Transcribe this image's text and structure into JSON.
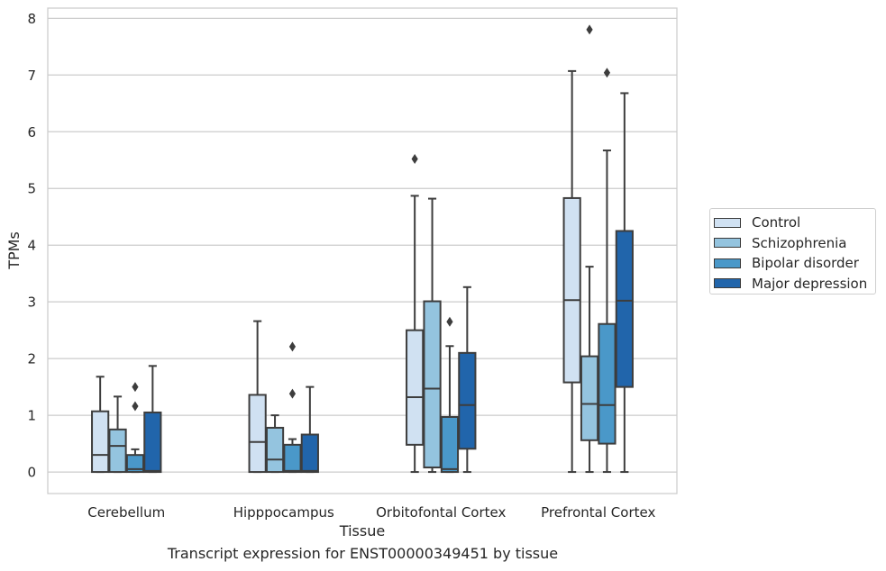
{
  "chart_data": {
    "type": "box",
    "xlabel": "Tissue",
    "ylabel": "TPMs",
    "ylim": [
      -0.38,
      8.18
    ],
    "yticks": [
      0,
      1,
      2,
      3,
      4,
      5,
      6,
      7,
      8
    ],
    "grid": true,
    "legend_position": "right",
    "categories": [
      "Cerebellum",
      "Hipppocampus",
      "Orbitofontal Cortex",
      "Prefrontal Cortex"
    ],
    "series": [
      {
        "name": "Control",
        "color": "#d0e1f2",
        "boxes": [
          {
            "whislo": 0,
            "q1": 0,
            "med": 0.3,
            "q3": 1.07,
            "whishi": 1.68,
            "fliers": []
          },
          {
            "whislo": 0,
            "q1": 0,
            "med": 0.53,
            "q3": 1.36,
            "whishi": 2.66,
            "fliers": []
          },
          {
            "whislo": 0,
            "q1": 0.48,
            "med": 1.32,
            "q3": 2.5,
            "whishi": 4.87,
            "fliers": [
              5.52
            ]
          },
          {
            "whislo": 0,
            "q1": 1.58,
            "med": 3.03,
            "q3": 4.83,
            "whishi": 7.07,
            "fliers": []
          }
        ]
      },
      {
        "name": "Schizophrenia",
        "color": "#94c4df",
        "boxes": [
          {
            "whislo": 0,
            "q1": 0,
            "med": 0.46,
            "q3": 0.75,
            "whishi": 1.33,
            "fliers": []
          },
          {
            "whislo": 0,
            "q1": 0,
            "med": 0.22,
            "q3": 0.78,
            "whishi": 1.0,
            "fliers": []
          },
          {
            "whislo": 0,
            "q1": 0.08,
            "med": 1.47,
            "q3": 3.01,
            "whishi": 4.82,
            "fliers": []
          },
          {
            "whislo": 0,
            "q1": 0.56,
            "med": 1.2,
            "q3": 2.04,
            "whishi": 3.62,
            "fliers": [
              7.8
            ]
          }
        ]
      },
      {
        "name": "Bipolar disorder",
        "color": "#4a98c9",
        "boxes": [
          {
            "whislo": 0,
            "q1": 0,
            "med": 0.05,
            "q3": 0.3,
            "whishi": 0.4,
            "fliers": [
              1.16,
              1.5
            ]
          },
          {
            "whislo": 0,
            "q1": 0,
            "med": 0.02,
            "q3": 0.48,
            "whishi": 0.58,
            "fliers": [
              1.38,
              2.21
            ]
          },
          {
            "whislo": 0,
            "q1": 0,
            "med": 0.05,
            "q3": 0.97,
            "whishi": 2.22,
            "fliers": [
              2.65
            ]
          },
          {
            "whislo": 0,
            "q1": 0.5,
            "med": 1.18,
            "q3": 2.61,
            "whishi": 5.67,
            "fliers": [
              7.04
            ]
          }
        ]
      },
      {
        "name": "Major depression",
        "color": "#2165ab",
        "boxes": [
          {
            "whislo": 0,
            "q1": 0,
            "med": 0.02,
            "q3": 1.05,
            "whishi": 1.87,
            "fliers": []
          },
          {
            "whislo": 0,
            "q1": 0,
            "med": 0.02,
            "q3": 0.66,
            "whishi": 1.5,
            "fliers": []
          },
          {
            "whislo": 0,
            "q1": 0.41,
            "med": 1.18,
            "q3": 2.1,
            "whishi": 3.26,
            "fliers": []
          },
          {
            "whislo": 0,
            "q1": 1.5,
            "med": 3.02,
            "q3": 4.25,
            "whishi": 6.68,
            "fliers": []
          }
        ]
      }
    ]
  },
  "caption": "Transcript expression for ENST00000349451 by tissue"
}
